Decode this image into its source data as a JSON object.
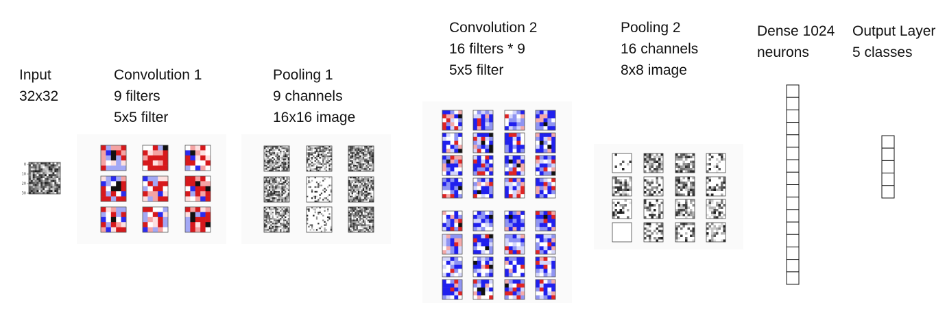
{
  "stages": [
    {
      "id": "input",
      "lines": [
        "Input",
        "32x32"
      ]
    },
    {
      "id": "conv1",
      "lines": [
        "Convolution 1",
        "9 filters",
        "5x5 filter"
      ]
    },
    {
      "id": "pool1",
      "lines": [
        "Pooling 1",
        "9 channels",
        "16x16 image"
      ]
    },
    {
      "id": "conv2",
      "lines": [
        "Convolution 2",
        "16 filters * 9",
        "5x5 filter"
      ]
    },
    {
      "id": "pool2",
      "lines": [
        "Pooling 2",
        "16 channels",
        "8x8 image"
      ]
    },
    {
      "id": "dense",
      "lines": [
        "Dense 1024",
        "neurons"
      ]
    },
    {
      "id": "output",
      "lines": [
        "Output Layer",
        "5 classes"
      ]
    }
  ],
  "input_axis_ticks": [
    "0",
    "10",
    "20",
    "30"
  ],
  "colors": {
    "filter_red": "#d7191c",
    "filter_blue": "#1a1aff",
    "grey_dark": "#333333",
    "text": "#111111"
  }
}
